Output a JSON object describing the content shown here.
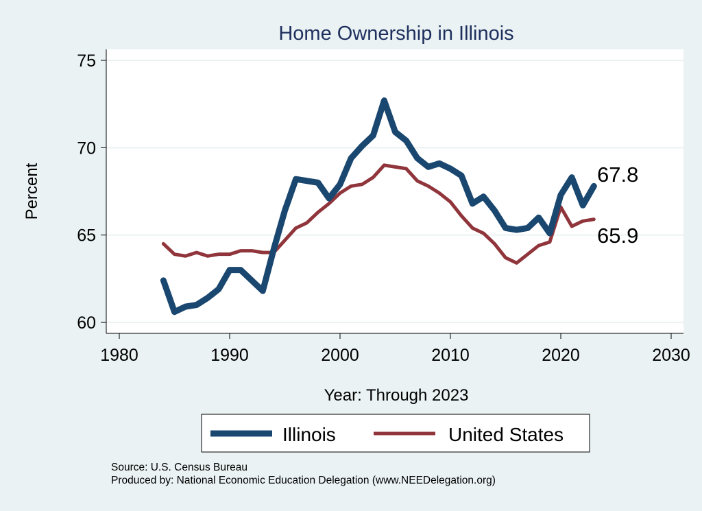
{
  "chart_data": {
    "type": "line",
    "title": "Home Ownership in Illinois",
    "xlabel": "Year: Through 2023",
    "ylabel": "Percent",
    "xlim": [
      1980,
      2030
    ],
    "ylim": [
      60,
      75
    ],
    "xticks": [
      1980,
      1990,
      2000,
      2010,
      2020,
      2030
    ],
    "yticks": [
      60,
      65,
      70,
      75
    ],
    "grid": true,
    "legend": "bottom",
    "x": [
      1984,
      1985,
      1986,
      1987,
      1988,
      1989,
      1990,
      1991,
      1992,
      1993,
      1994,
      1995,
      1996,
      1997,
      1998,
      1999,
      2000,
      2001,
      2002,
      2003,
      2004,
      2005,
      2006,
      2007,
      2008,
      2009,
      2010,
      2011,
      2012,
      2013,
      2014,
      2015,
      2016,
      2017,
      2018,
      2019,
      2020,
      2021,
      2022,
      2023
    ],
    "series": [
      {
        "name": "Illinois",
        "color": "#1a476f",
        "values": [
          62.4,
          60.6,
          60.9,
          61.0,
          61.4,
          61.9,
          63.0,
          63.0,
          62.4,
          61.8,
          64.2,
          66.4,
          68.2,
          68.1,
          68.0,
          67.1,
          67.9,
          69.4,
          70.1,
          70.7,
          72.7,
          70.9,
          70.4,
          69.4,
          68.9,
          69.1,
          68.8,
          68.4,
          66.8,
          67.2,
          66.4,
          65.4,
          65.3,
          65.4,
          66.0,
          65.1,
          67.3,
          68.3,
          66.7,
          67.8
        ],
        "end_label": "67.8"
      },
      {
        "name": "United States",
        "color": "#90353b",
        "values": [
          64.5,
          63.9,
          63.8,
          64.0,
          63.8,
          63.9,
          63.9,
          64.1,
          64.1,
          64.0,
          64.0,
          64.7,
          65.4,
          65.7,
          66.3,
          66.8,
          67.4,
          67.8,
          67.9,
          68.3,
          69.0,
          68.9,
          68.8,
          68.1,
          67.8,
          67.4,
          66.9,
          66.1,
          65.4,
          65.1,
          64.5,
          63.7,
          63.4,
          63.9,
          64.4,
          64.6,
          66.6,
          65.5,
          65.8,
          65.9
        ],
        "end_label": "65.9"
      }
    ]
  },
  "notes": {
    "source": "Source: U.S. Census Bureau",
    "produced": "Produced by: National Economic Education Delegation (www.NEEDelegation.org)"
  }
}
